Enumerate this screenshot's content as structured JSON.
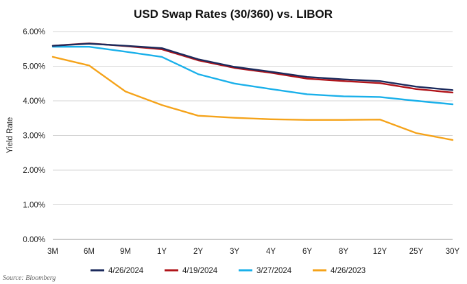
{
  "chart_data": {
    "type": "line",
    "title": "USD Swap Rates (30/360) vs. LIBOR",
    "xlabel": "",
    "ylabel": "Yield Rate",
    "categories": [
      "3M",
      "6M",
      "9M",
      "1Y",
      "2Y",
      "3Y",
      "4Y",
      "6Y",
      "8Y",
      "12Y",
      "25Y",
      "30Y"
    ],
    "ylim": [
      0,
      6
    ],
    "yticks": [
      0,
      1,
      2,
      3,
      4,
      5,
      6
    ],
    "ytick_labels": [
      "0.00%",
      "1.00%",
      "2.00%",
      "3.00%",
      "4.00%",
      "5.00%",
      "6.00%"
    ],
    "grid": "horizontal",
    "legend": "bottom",
    "series": [
      {
        "name": "4/26/2024",
        "color": "#1b2a5c",
        "values": [
          5.59,
          5.65,
          5.59,
          5.52,
          5.2,
          4.98,
          4.84,
          4.69,
          4.62,
          4.57,
          4.41,
          4.31
        ]
      },
      {
        "name": "4/19/2024",
        "color": "#b0141a",
        "values": [
          5.59,
          5.66,
          5.58,
          5.49,
          5.17,
          4.95,
          4.81,
          4.64,
          4.57,
          4.51,
          4.34,
          4.24
        ]
      },
      {
        "name": "3/27/2024",
        "color": "#1ab0ea",
        "values": [
          5.56,
          5.56,
          5.42,
          5.27,
          4.77,
          4.5,
          4.34,
          4.19,
          4.13,
          4.11,
          4.0,
          3.9
        ]
      },
      {
        "name": "4/26/2023",
        "color": "#f5a31a",
        "values": [
          5.27,
          5.02,
          4.27,
          3.88,
          3.57,
          3.51,
          3.47,
          3.45,
          3.45,
          3.46,
          3.07,
          2.87
        ]
      }
    ],
    "source": "Source: Bloomberg"
  }
}
